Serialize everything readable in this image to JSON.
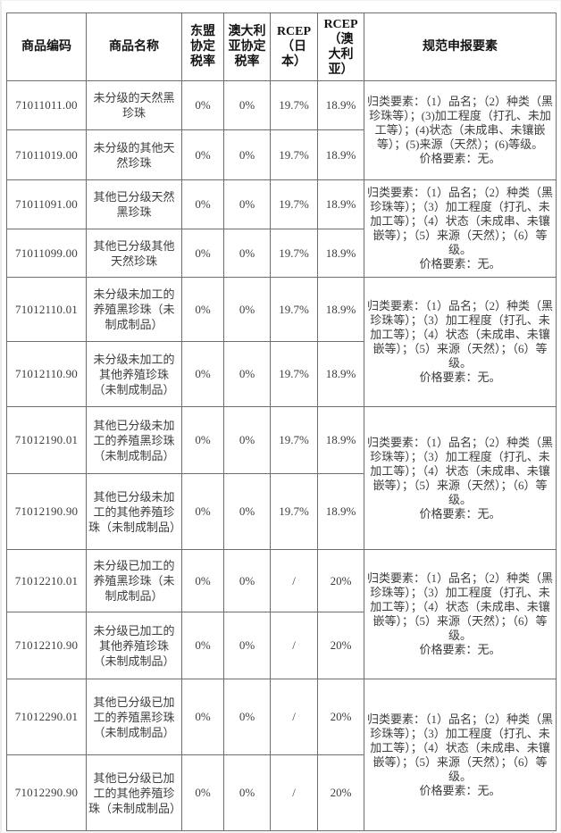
{
  "colors": {
    "background": "#ffffff",
    "border": "#6e6e6e",
    "body_text": "#3d3d3d",
    "header_text": "#141414"
  },
  "table": {
    "columns": [
      {
        "key": "code",
        "label": "商品编码"
      },
      {
        "key": "name",
        "label": "商品名称"
      },
      {
        "key": "asean",
        "label": "东盟\n协定\n税率"
      },
      {
        "key": "australia",
        "label": "澳大利\n亚协定\n税率"
      },
      {
        "key": "rcep_japan",
        "label": "RCEP\n（日\n本）"
      },
      {
        "key": "rcep_australia",
        "label": "RCEP\n（澳\n大利\n亚）"
      },
      {
        "key": "declaration",
        "label": "规范申报要素"
      }
    ],
    "rows": [
      {
        "code": "71011011.00",
        "name": "未分级的天然黑珍珠",
        "asean": "0%",
        "australia": "0%",
        "rcep_japan": "19.7%",
        "rcep_australia": "18.9%"
      },
      {
        "code": "71011019.00",
        "name": "未分级的其他天然珍珠",
        "asean": "0%",
        "australia": "0%",
        "rcep_japan": "19.7%",
        "rcep_australia": "18.9%"
      },
      {
        "code": "71011091.00",
        "name": "其他已分级天然黑珍珠",
        "asean": "0%",
        "australia": "0%",
        "rcep_japan": "19.7%",
        "rcep_australia": "18.9%"
      },
      {
        "code": "71011099.00",
        "name": "其他已分级其他天然珍珠",
        "asean": "0%",
        "australia": "0%",
        "rcep_japan": "19.7%",
        "rcep_australia": "18.9%"
      },
      {
        "code": "71012110.01",
        "name": "未分级未加工的养殖黑珍珠（未制成制品）",
        "asean": "0%",
        "australia": "0%",
        "rcep_japan": "19.7%",
        "rcep_australia": "18.9%"
      },
      {
        "code": "71012110.90",
        "name": "未分级未加工的其他养殖珍珠（未制成制品）",
        "asean": "0%",
        "australia": "0%",
        "rcep_japan": "19.7%",
        "rcep_australia": "18.9%"
      },
      {
        "code": "71012190.01",
        "name": "其他已分级未加工的养殖黑珍珠（未制成制品）",
        "asean": "0%",
        "australia": "0%",
        "rcep_japan": "19.7%",
        "rcep_australia": "18.9%"
      },
      {
        "code": "71012190.90",
        "name": "其他已分级未加工的其他养殖珍珠（未制成制品）",
        "asean": "0%",
        "australia": "0%",
        "rcep_japan": "19.7%",
        "rcep_australia": "18.9%"
      },
      {
        "code": "71012210.01",
        "name": "未分级已加工的养殖黑珍珠（未制成制品）",
        "asean": "0%",
        "australia": "0%",
        "rcep_japan": "/",
        "rcep_australia": "20%"
      },
      {
        "code": "71012210.90",
        "name": "未分级已加工的其他养殖珍珠（未制成制品）",
        "asean": "0%",
        "australia": "0%",
        "rcep_japan": "/",
        "rcep_australia": "20%"
      },
      {
        "code": "71012290.01",
        "name": "其他已分级已加工的养殖黑珍珠（未制成制品）",
        "asean": "0%",
        "australia": "0%",
        "rcep_japan": "/",
        "rcep_australia": "20%"
      },
      {
        "code": "71012290.90",
        "name": "其他已分级已加工的其他养殖珍珠（未制成制品）",
        "asean": "0%",
        "australia": "0%",
        "rcep_japan": "/",
        "rcep_australia": "20%"
      }
    ],
    "declaration_groups": [
      {
        "rows": [
          1,
          2
        ],
        "text": "归类要素：（1）品名；（2）种类（黑珍珠等）；(3)加工程度（打孔、未加工等）；(4)状态（未成串、未镶嵌等）；(5)来源（天然）；(6)等级。\n价格要素：无。"
      },
      {
        "rows": [
          3,
          4
        ],
        "text": "归类要素：（1）品名；（2）种类（黑珍珠等）；（3）加工程度（打孔、未加工等）；（4）状态（未成串、未镶嵌等）；（5）来源（天然）；（6）等级。\n价格要素：无。"
      },
      {
        "rows": [
          5,
          6
        ],
        "text": "归类要素：（1）品名；（2）种类（黑珍珠等）；（3）加工程度（打孔、未加工等）；（4）状态（未成串、未镶嵌等）；（5）来源（天然）；（6）等级。\n价格要素：无。"
      },
      {
        "rows": [
          7,
          8
        ],
        "text": "归类要素：（1）品名；（2）种类（黑珍珠等）；（3）加工程度（打孔、未加工等）；（4）状态（未成串、未镶嵌等）；（5）来源（天然）；（6）等级。\n价格要素：无。"
      },
      {
        "rows": [
          9,
          10
        ],
        "text": "归类要素：（1）品名；（2）种类（黑珍珠等）；（3）加工程度（打孔、未加工等）；（4）状态（未成串、未镶嵌等）；（5）来源（天然）；（6）等级。\n价格要素：无。"
      },
      {
        "rows": [
          11,
          12
        ],
        "text": "归类要素：（1）品名；（2）种类（黑珍珠等）；（3）加工程度（打孔、未加工等）；（4）状态（未成串、未镶嵌等）；（5）来源（天然）；（6）等级。\n价格要素：无。"
      }
    ]
  }
}
